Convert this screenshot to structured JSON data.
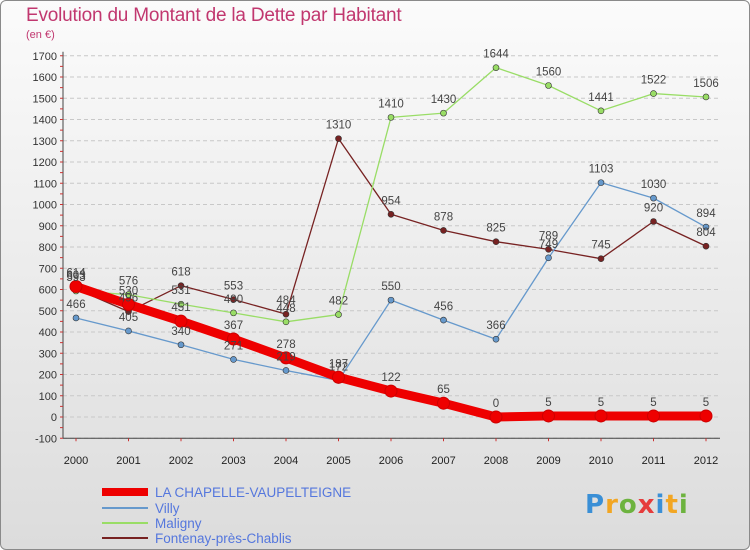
{
  "title": "Evolution du Montant de la Dette par Habitant",
  "subtitle": "(en €)",
  "logo": {
    "letters": [
      "P",
      "r",
      "o",
      "x",
      "i",
      "t",
      "i"
    ],
    "colors": [
      "#3a8fd6",
      "#f2a623",
      "#6db33f",
      "#e63c3c",
      "#3a8fd6",
      "#f2a623",
      "#6db33f"
    ]
  },
  "chart_data": {
    "type": "line",
    "title": "Evolution du Montant de la Dette par Habitant",
    "ylabel": "(en €)",
    "xlabel": "",
    "x": [
      "2000",
      "2001",
      "2002",
      "2003",
      "2004",
      "2005",
      "2006",
      "2007",
      "2008",
      "2009",
      "2010",
      "2011",
      "2012"
    ],
    "ylim": [
      -100,
      1700
    ],
    "yticks": [
      "-100",
      "0",
      "100",
      "200",
      "300",
      "400",
      "500",
      "600",
      "700",
      "800",
      "900",
      "1000",
      "1100",
      "1200",
      "1300",
      "1400",
      "1500",
      "1600",
      "1700"
    ],
    "grid": "horizontal dashed",
    "legend_position": "bottom-left",
    "series": [
      {
        "name": "LA CHAPELLE-VAUPELTEIGNE",
        "color": "#ee0000",
        "values": [
          614,
          530,
          451,
          367,
          278,
          187,
          122,
          65,
          0,
          5,
          5,
          5,
          5
        ],
        "labels": [
          "614",
          "530",
          "451",
          "367",
          "278",
          "187",
          "122",
          "65",
          "0",
          "5",
          "5",
          "5",
          "5"
        ]
      },
      {
        "name": "Villy",
        "color": "#6699cc",
        "values": [
          466,
          405,
          340,
          271,
          219,
          172,
          550,
          456,
          366,
          749,
          1103,
          1030,
          894
        ],
        "labels": [
          "466",
          "405",
          "340",
          "271",
          "219",
          "172",
          "550",
          "456",
          "366",
          "749",
          "1103",
          "1030",
          "894"
        ]
      },
      {
        "name": "Maligny",
        "color": "#99dd66",
        "values": [
          593,
          576,
          531,
          490,
          448,
          482,
          1410,
          1430,
          1644,
          1560,
          1441,
          1522,
          1506
        ],
        "labels": [
          "593",
          "576",
          "531",
          "490",
          "448",
          "482",
          "1410",
          "1430",
          "1644",
          "1560",
          "1441",
          "1522",
          "1506"
        ]
      },
      {
        "name": "Fontenay-près-Chablis",
        "color": "#772222",
        "values": [
          603,
          496,
          618,
          553,
          484,
          1310,
          954,
          878,
          825,
          789,
          745,
          920,
          804
        ],
        "labels": [
          "603",
          "496",
          "618",
          "553",
          "484",
          "1310",
          "954",
          "878",
          "825",
          "789",
          "745",
          "920",
          "804"
        ]
      }
    ]
  }
}
